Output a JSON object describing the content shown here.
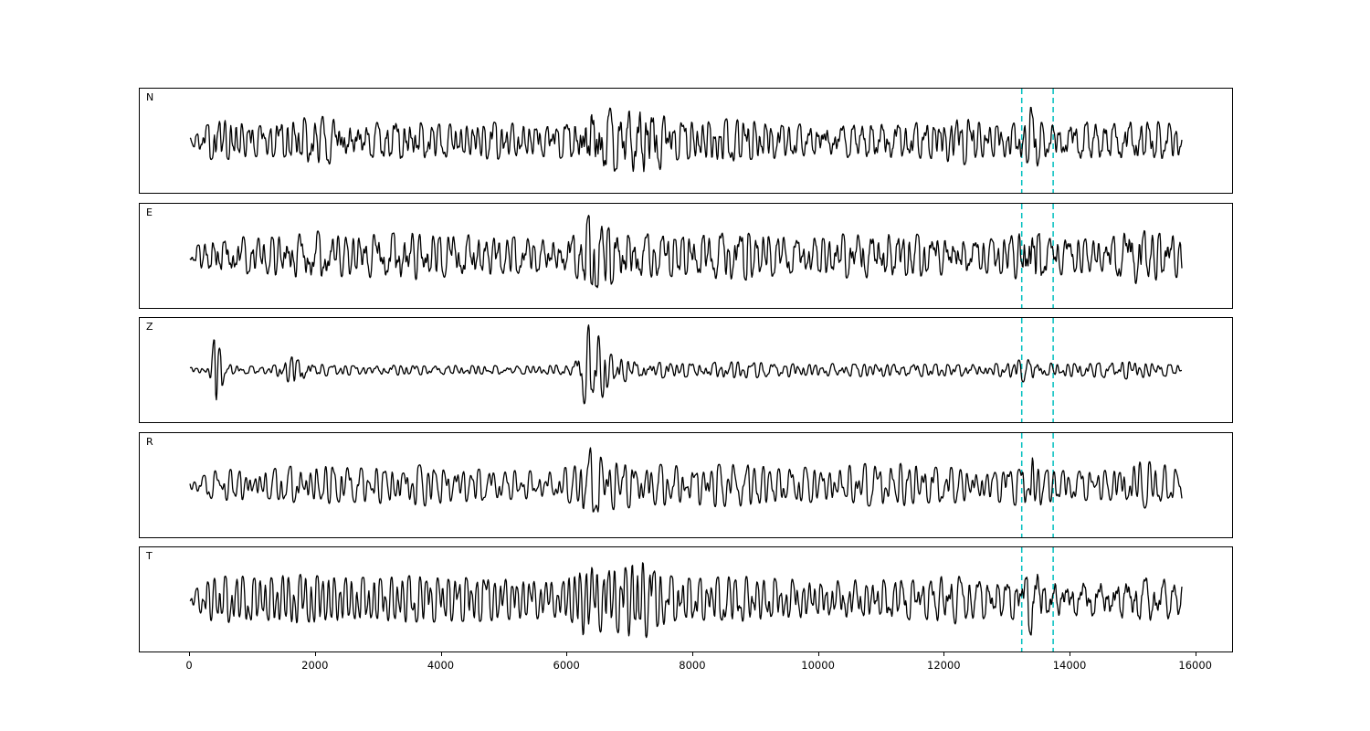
{
  "figure": {
    "background": "#ffffff",
    "trace_color": "#000000",
    "frame_color": "#000000"
  },
  "chart_data": {
    "type": "line",
    "title": "",
    "xlabel": "",
    "ylabel": "",
    "grid": false,
    "legend": null,
    "xlim": [
      -800,
      16600
    ],
    "x_data_range": [
      0,
      15800
    ],
    "xticks": [
      0,
      2000,
      4000,
      6000,
      8000,
      10000,
      12000,
      14000,
      16000
    ],
    "vlines": {
      "positions": [
        13250,
        13750
      ],
      "style": "dashed",
      "color": "#00bfbf",
      "width": 1.5
    },
    "panels": [
      {
        "label": "N",
        "seed": 7,
        "amplitude_scale": 0.92,
        "envelope": [
          [
            0,
            0.08
          ],
          [
            150,
            0.25
          ],
          [
            380,
            0.5
          ],
          [
            600,
            0.55
          ],
          [
            900,
            0.4
          ],
          [
            1200,
            0.35
          ],
          [
            1650,
            0.55
          ],
          [
            2100,
            0.6
          ],
          [
            2500,
            0.5
          ],
          [
            2900,
            0.42
          ],
          [
            3400,
            0.55
          ],
          [
            3800,
            0.42
          ],
          [
            4300,
            0.38
          ],
          [
            4800,
            0.45
          ],
          [
            5300,
            0.4
          ],
          [
            5800,
            0.38
          ],
          [
            6150,
            0.5
          ],
          [
            6400,
            0.95
          ],
          [
            6650,
            0.8
          ],
          [
            6950,
            0.75
          ],
          [
            7250,
            1.0
          ],
          [
            7500,
            0.7
          ],
          [
            7700,
            0.45
          ],
          [
            8300,
            0.52
          ],
          [
            8900,
            0.5
          ],
          [
            9400,
            0.42
          ],
          [
            9900,
            0.38
          ],
          [
            10400,
            0.4
          ],
          [
            10900,
            0.48
          ],
          [
            11400,
            0.42
          ],
          [
            11900,
            0.45
          ],
          [
            12300,
            0.58
          ],
          [
            12700,
            0.38
          ],
          [
            13100,
            0.42
          ],
          [
            13300,
            0.5
          ],
          [
            13420,
            0.95
          ],
          [
            13560,
            0.45
          ],
          [
            13900,
            0.4
          ],
          [
            14300,
            0.5
          ],
          [
            14700,
            0.45
          ],
          [
            15100,
            0.52
          ],
          [
            15500,
            0.45
          ],
          [
            15800,
            0.4
          ]
        ]
      },
      {
        "label": "E",
        "seed": 13,
        "amplitude_scale": 0.95,
        "envelope": [
          [
            0,
            0.1
          ],
          [
            250,
            0.4
          ],
          [
            700,
            0.45
          ],
          [
            1100,
            0.42
          ],
          [
            1500,
            0.5
          ],
          [
            2000,
            0.58
          ],
          [
            2400,
            0.48
          ],
          [
            2900,
            0.5
          ],
          [
            3400,
            0.6
          ],
          [
            3900,
            0.48
          ],
          [
            4400,
            0.52
          ],
          [
            4900,
            0.45
          ],
          [
            5400,
            0.42
          ],
          [
            5900,
            0.4
          ],
          [
            6200,
            0.55
          ],
          [
            6380,
            1.0
          ],
          [
            6600,
            0.75
          ],
          [
            6900,
            0.65
          ],
          [
            7300,
            0.52
          ],
          [
            7800,
            0.48
          ],
          [
            8300,
            0.55
          ],
          [
            8800,
            0.6
          ],
          [
            9300,
            0.48
          ],
          [
            9800,
            0.42
          ],
          [
            10300,
            0.5
          ],
          [
            10800,
            0.52
          ],
          [
            11300,
            0.55
          ],
          [
            11800,
            0.45
          ],
          [
            12300,
            0.42
          ],
          [
            12800,
            0.4
          ],
          [
            13200,
            0.55
          ],
          [
            13420,
            0.95
          ],
          [
            13620,
            0.45
          ],
          [
            14100,
            0.42
          ],
          [
            14600,
            0.4
          ],
          [
            15000,
            0.68
          ],
          [
            15300,
            0.6
          ],
          [
            15800,
            0.48
          ]
        ]
      },
      {
        "label": "Z",
        "seed": 29,
        "amplitude_scale": 1.0,
        "envelope": [
          [
            0,
            0.06
          ],
          [
            300,
            0.08
          ],
          [
            400,
            0.85
          ],
          [
            470,
            0.6
          ],
          [
            560,
            0.15
          ],
          [
            900,
            0.09
          ],
          [
            1300,
            0.08
          ],
          [
            1700,
            0.38
          ],
          [
            1850,
            0.2
          ],
          [
            2200,
            0.12
          ],
          [
            2700,
            0.1
          ],
          [
            3200,
            0.12
          ],
          [
            3700,
            0.1
          ],
          [
            4200,
            0.11
          ],
          [
            4700,
            0.1
          ],
          [
            5200,
            0.09
          ],
          [
            5700,
            0.1
          ],
          [
            6100,
            0.15
          ],
          [
            6350,
            1.0
          ],
          [
            6500,
            0.8
          ],
          [
            6700,
            0.35
          ],
          [
            7000,
            0.25
          ],
          [
            7400,
            0.18
          ],
          [
            7900,
            0.15
          ],
          [
            8400,
            0.2
          ],
          [
            8900,
            0.18
          ],
          [
            9400,
            0.16
          ],
          [
            9900,
            0.13
          ],
          [
            10400,
            0.15
          ],
          [
            10900,
            0.14
          ],
          [
            11400,
            0.16
          ],
          [
            11900,
            0.13
          ],
          [
            12400,
            0.15
          ],
          [
            12900,
            0.14
          ],
          [
            13350,
            0.28
          ],
          [
            13600,
            0.16
          ],
          [
            14100,
            0.15
          ],
          [
            14600,
            0.18
          ],
          [
            15000,
            0.2
          ],
          [
            15400,
            0.16
          ],
          [
            15800,
            0.13
          ]
        ]
      },
      {
        "label": "R",
        "seed": 41,
        "amplitude_scale": 0.92,
        "envelope": [
          [
            0,
            0.1
          ],
          [
            350,
            0.35
          ],
          [
            800,
            0.4
          ],
          [
            1300,
            0.38
          ],
          [
            1800,
            0.5
          ],
          [
            2300,
            0.48
          ],
          [
            2800,
            0.42
          ],
          [
            3300,
            0.48
          ],
          [
            3800,
            0.5
          ],
          [
            4300,
            0.42
          ],
          [
            4800,
            0.38
          ],
          [
            5300,
            0.35
          ],
          [
            5800,
            0.34
          ],
          [
            6150,
            0.5
          ],
          [
            6380,
            1.0
          ],
          [
            6600,
            0.65
          ],
          [
            7000,
            0.55
          ],
          [
            7400,
            0.5
          ],
          [
            7900,
            0.48
          ],
          [
            8400,
            0.52
          ],
          [
            8900,
            0.55
          ],
          [
            9400,
            0.45
          ],
          [
            9900,
            0.42
          ],
          [
            10400,
            0.48
          ],
          [
            10900,
            0.52
          ],
          [
            11400,
            0.55
          ],
          [
            11900,
            0.45
          ],
          [
            12400,
            0.42
          ],
          [
            12900,
            0.4
          ],
          [
            13250,
            0.5
          ],
          [
            13420,
            0.9
          ],
          [
            13620,
            0.42
          ],
          [
            14100,
            0.38
          ],
          [
            14600,
            0.36
          ],
          [
            15000,
            0.62
          ],
          [
            15350,
            0.55
          ],
          [
            15800,
            0.42
          ]
        ]
      },
      {
        "label": "T",
        "seed": 53,
        "amplitude_scale": 0.95,
        "envelope": [
          [
            0,
            0.1
          ],
          [
            300,
            0.5
          ],
          [
            700,
            0.55
          ],
          [
            1100,
            0.5
          ],
          [
            1500,
            0.58
          ],
          [
            2000,
            0.6
          ],
          [
            2500,
            0.52
          ],
          [
            3000,
            0.5
          ],
          [
            3500,
            0.55
          ],
          [
            4000,
            0.5
          ],
          [
            4500,
            0.52
          ],
          [
            5000,
            0.48
          ],
          [
            5500,
            0.45
          ],
          [
            5900,
            0.42
          ],
          [
            6250,
            0.88
          ],
          [
            6550,
            0.75
          ],
          [
            6850,
            0.8
          ],
          [
            7150,
            1.0
          ],
          [
            7450,
            0.7
          ],
          [
            7700,
            0.52
          ],
          [
            8200,
            0.5
          ],
          [
            8700,
            0.55
          ],
          [
            9200,
            0.5
          ],
          [
            9700,
            0.48
          ],
          [
            10200,
            0.45
          ],
          [
            10700,
            0.48
          ],
          [
            11200,
            0.5
          ],
          [
            11700,
            0.48
          ],
          [
            12100,
            0.6
          ],
          [
            12500,
            0.48
          ],
          [
            12900,
            0.44
          ],
          [
            13250,
            0.55
          ],
          [
            13420,
            0.95
          ],
          [
            13620,
            0.5
          ],
          [
            14100,
            0.48
          ],
          [
            14600,
            0.5
          ],
          [
            15000,
            0.6
          ],
          [
            15400,
            0.55
          ],
          [
            15800,
            0.45
          ]
        ]
      }
    ]
  }
}
